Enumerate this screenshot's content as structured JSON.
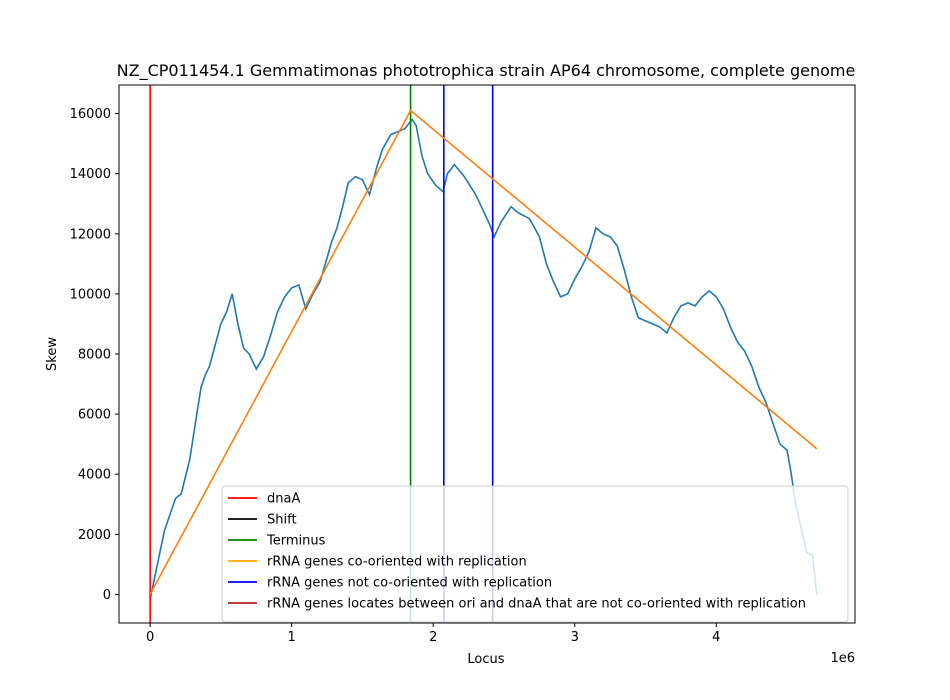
{
  "chart_data": {
    "type": "line",
    "title": "NZ_CP011454.1 Gemmatimonas phototrophica strain AP64 chromosome, complete genome",
    "xlabel": "Locus",
    "ylabel": "Skew",
    "x_offset_label": "1e6",
    "xlim": [
      -220000,
      4980000
    ],
    "ylim": [
      -950,
      16950
    ],
    "xticks": [
      0,
      1000000,
      2000000,
      3000000,
      4000000
    ],
    "xtick_labels": [
      "0",
      "1",
      "2",
      "3",
      "4"
    ],
    "yticks": [
      0,
      2000,
      4000,
      6000,
      8000,
      10000,
      12000,
      14000,
      16000
    ],
    "ytick_labels": [
      "0",
      "2000",
      "4000",
      "6000",
      "8000",
      "10000",
      "12000",
      "14000",
      "16000"
    ],
    "grid": false,
    "legend_position": "lower-right",
    "skew_series": {
      "color": "#1f77b4",
      "x": [
        0,
        20000,
        60000,
        100000,
        150000,
        180000,
        220000,
        280000,
        330000,
        360000,
        390000,
        420000,
        460000,
        500000,
        540000,
        580000,
        620000,
        660000,
        700000,
        750000,
        800000,
        850000,
        900000,
        950000,
        1000000,
        1050000,
        1100000,
        1150000,
        1200000,
        1250000,
        1280000,
        1320000,
        1360000,
        1400000,
        1450000,
        1500000,
        1550000,
        1600000,
        1640000,
        1700000,
        1750000,
        1800000,
        1850000,
        1880000,
        1920000,
        1960000,
        2020000,
        2070000,
        2100000,
        2150000,
        2220000,
        2300000,
        2350000,
        2400000,
        2430000,
        2480000,
        2550000,
        2600000,
        2680000,
        2750000,
        2800000,
        2850000,
        2900000,
        2950000,
        3000000,
        3050000,
        3100000,
        3150000,
        3200000,
        3250000,
        3300000,
        3350000,
        3400000,
        3450000,
        3500000,
        3550000,
        3600000,
        3650000,
        3700000,
        3750000,
        3800000,
        3850000,
        3900000,
        3950000,
        4000000,
        4050000,
        4100000,
        4150000,
        4200000,
        4250000,
        4300000,
        4350000,
        4400000,
        4450000,
        4500000,
        4530000,
        4560000,
        4600000,
        4640000,
        4680000,
        4710000
      ],
      "y": [
        -150,
        300,
        1200,
        2100,
        2800,
        3200,
        3350,
        4500,
        6000,
        6900,
        7300,
        7600,
        8300,
        9000,
        9400,
        10000,
        9000,
        8200,
        8000,
        7500,
        7900,
        8600,
        9400,
        9900,
        10200,
        10300,
        9500,
        10000,
        10400,
        11200,
        11700,
        12200,
        12900,
        13700,
        13900,
        13800,
        13300,
        14200,
        14800,
        15300,
        15400,
        15500,
        15800,
        15600,
        14600,
        14000,
        13600,
        13400,
        14000,
        14300,
        13900,
        13300,
        12800,
        12300,
        11900,
        12400,
        12900,
        12700,
        12500,
        11900,
        11000,
        10400,
        9900,
        10000,
        10500,
        10900,
        11400,
        12200,
        12000,
        11900,
        11600,
        10800,
        9900,
        9200,
        9100,
        9000,
        8900,
        8700,
        9200,
        9600,
        9700,
        9600,
        9900,
        10100,
        9900,
        9500,
        8900,
        8400,
        8100,
        7600,
        6900,
        6400,
        5700,
        5000,
        4800,
        4000,
        3000,
        2200,
        1400,
        1300,
        0
      ]
    },
    "reference_lines": {
      "dnaA": {
        "x": 0,
        "color": "#ff0000"
      },
      "terminus": {
        "x": 1840000,
        "color": "#008000"
      },
      "rrna_not_co_oriented": {
        "x": [
          2075000,
          2420000
        ],
        "color": "#0000ff"
      }
    },
    "fit_line": {
      "color": "#ff7f0e",
      "x": [
        0,
        1840000,
        4710000
      ],
      "y": [
        0,
        16100,
        4850
      ]
    },
    "legend": [
      {
        "label": "dnaA",
        "color": "#ff0000"
      },
      {
        "label": "Shift",
        "color": "#000000"
      },
      {
        "label": "Terminus",
        "color": "#008000"
      },
      {
        "label": "rRNA genes co-oriented with replication",
        "color": "#ffa500"
      },
      {
        "label": "rRNA genes not co-oriented with replication",
        "color": "#0000ff"
      },
      {
        "label": "rRNA genes locates between ori and dnaA that are not co-oriented with replication",
        "color": "#b22222"
      }
    ]
  }
}
